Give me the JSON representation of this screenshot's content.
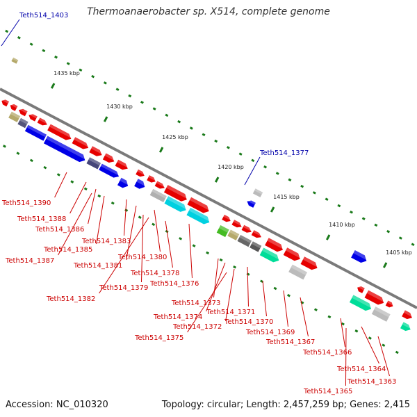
{
  "title": "Thermoanaerobacter sp. X514, complete genome",
  "footer": {
    "accession": "Accession: NC_010320",
    "topology": "Topology: circular; Length: 2,457,259 bp; Genes: 2,415"
  },
  "ruler_ticks": [
    "1435 kbp",
    "1430 kbp",
    "1425 kbp",
    "1420 kbp",
    "1415 kbp",
    "1410 kbp",
    "1405 kbp"
  ],
  "colors": {
    "label_blue": "#0000aa",
    "label_red": "#cc0000",
    "backbone": "#7a7a7a",
    "ruler": "#1a7a1a"
  },
  "labels": [
    "Teth514_1403",
    "Teth514_1377",
    "Teth514_1390",
    "Teth514_1388",
    "Teth514_1386",
    "Teth514_1383",
    "Teth514_1385",
    "Teth514_1387",
    "Teth514_1380",
    "Teth514_1381",
    "Teth514_1378",
    "Teth514_1379",
    "Teth514_1376",
    "Teth514_1382",
    "Teth514_1373",
    "Teth514_1374",
    "Teth514_1371",
    "Teth514_1372",
    "Teth514_1370",
    "Teth514_1375",
    "Teth514_1369",
    "Teth514_1367",
    "Teth514_1366",
    "Teth514_1364",
    "Teth514_1365",
    "Teth514_1363"
  ]
}
